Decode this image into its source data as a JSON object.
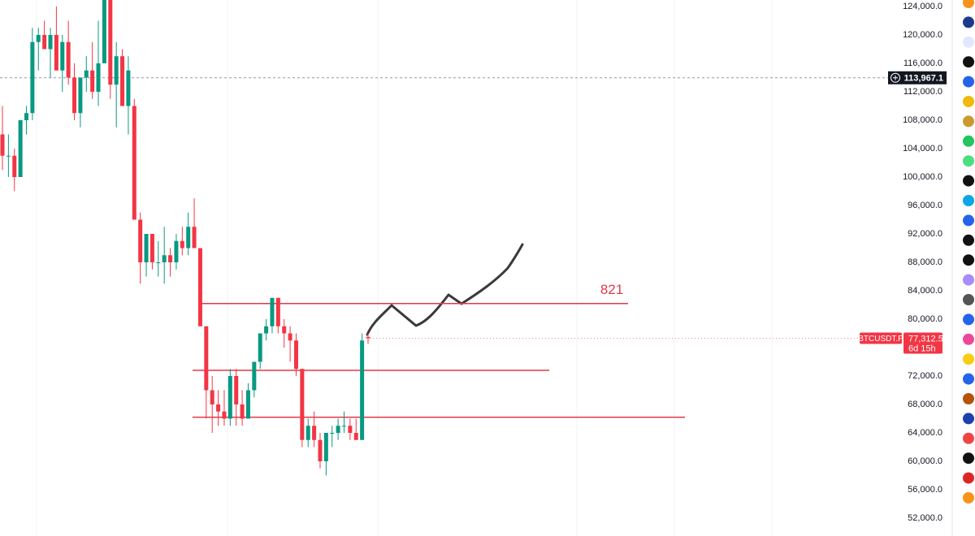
{
  "chart_data": {
    "type": "candlestick",
    "open": [
      106000,
      103000,
      103000,
      100000,
      108000,
      109000,
      119000,
      120000,
      118000,
      120000,
      115000,
      119000,
      114000,
      109000,
      114000,
      115000,
      112000,
      116000,
      125000,
      113000,
      117000,
      110000,
      110000,
      94000,
      88000,
      92000,
      88000,
      88000,
      89000,
      88000,
      91000,
      90000,
      93000,
      90000,
      79000,
      70000,
      68000,
      67000,
      66000,
      72000,
      68000,
      66000,
      70000,
      74000,
      78000,
      79000,
      83000,
      79000,
      78000,
      77000,
      73000,
      63000,
      65000,
      63000,
      60000,
      64000,
      64000,
      65000,
      65000,
      64000,
      63000,
      77500
    ],
    "high": [
      110000,
      106000,
      104000,
      108000,
      110000,
      121000,
      121000,
      122000,
      121000,
      124000,
      120000,
      122000,
      116000,
      114000,
      117000,
      119000,
      122000,
      125000,
      126000,
      119000,
      118000,
      117000,
      111000,
      95000,
      92000,
      92000,
      91000,
      93000,
      90000,
      92000,
      93000,
      95000,
      97000,
      90000,
      79000,
      72000,
      70000,
      70000,
      73000,
      73000,
      70000,
      71000,
      74000,
      78000,
      80000,
      83000,
      83000,
      80000,
      79000,
      78000,
      73000,
      66000,
      67000,
      64000,
      64000,
      65000,
      66000,
      67000,
      66000,
      66000,
      78000,
      78000
    ],
    "low": [
      101000,
      100000,
      98000,
      100000,
      106000,
      108000,
      115000,
      118000,
      114000,
      115000,
      112000,
      113000,
      108000,
      107000,
      112000,
      111000,
      110000,
      116000,
      111000,
      107000,
      110000,
      106000,
      94000,
      85000,
      86000,
      87000,
      86000,
      85000,
      86000,
      87000,
      89000,
      89000,
      90000,
      79000,
      66000,
      64000,
      65000,
      65000,
      65000,
      65000,
      65000,
      66000,
      69000,
      73000,
      77000,
      78000,
      78000,
      76000,
      74000,
      72000,
      62000,
      62000,
      62000,
      59000,
      58000,
      62000,
      63000,
      64000,
      63000,
      63000,
      63000,
      76500
    ],
    "close": [
      103000,
      103000,
      100000,
      108000,
      109000,
      119000,
      120000,
      118000,
      120000,
      115000,
      119000,
      114000,
      109000,
      114000,
      115000,
      112000,
      116000,
      125000,
      113000,
      117000,
      110000,
      115000,
      94000,
      88000,
      92000,
      88000,
      88000,
      89000,
      88000,
      91000,
      90000,
      93000,
      90000,
      79000,
      70000,
      68000,
      67000,
      66000,
      72000,
      68000,
      66000,
      70000,
      74000,
      78000,
      79000,
      83000,
      79000,
      78000,
      77000,
      73000,
      63000,
      65000,
      63000,
      60000,
      64000,
      64000,
      65000,
      65000,
      64000,
      63000,
      77000,
      77312.5
    ],
    "up_color": "#089981",
    "down_color": "#f23645",
    "ylim": [
      52000,
      124000
    ],
    "yticks": [
      {
        "value": 52000,
        "label": "52,000.0"
      },
      {
        "value": 56000,
        "label": "56,000.0"
      },
      {
        "value": 60000,
        "label": "60,000.0"
      },
      {
        "value": 64000,
        "label": "64,000.0"
      },
      {
        "value": 68000,
        "label": "68,000.0"
      },
      {
        "value": 72000,
        "label": "72,000.0"
      },
      {
        "value": 80000,
        "label": "80,000.0"
      },
      {
        "value": 84000,
        "label": "84,000.0"
      },
      {
        "value": 88000,
        "label": "88,000.0"
      },
      {
        "value": 92000,
        "label": "92,000.0"
      },
      {
        "value": 96000,
        "label": "96,000.0"
      },
      {
        "value": 100000,
        "label": "100,000.0"
      },
      {
        "value": 104000,
        "label": "104,000.0"
      },
      {
        "value": 108000,
        "label": "108,000.0"
      },
      {
        "value": 112000,
        "label": "112,000.0"
      },
      {
        "value": 116000,
        "label": "116,000.0"
      },
      {
        "value": 120000,
        "label": "120,000.0"
      },
      {
        "value": 124000,
        "label": "124,000.0"
      }
    ],
    "crosshair_price": {
      "value": 113967.1,
      "label": "113,967.1"
    },
    "last_price": {
      "value": 77312.5,
      "label": "77,312.5",
      "symbol": "BTCUSDT.P",
      "countdown": "6d 15h"
    },
    "levels": [
      {
        "value": 82200,
        "label": "821"
      },
      {
        "value": 72800
      },
      {
        "value": 66200
      }
    ]
  }
}
